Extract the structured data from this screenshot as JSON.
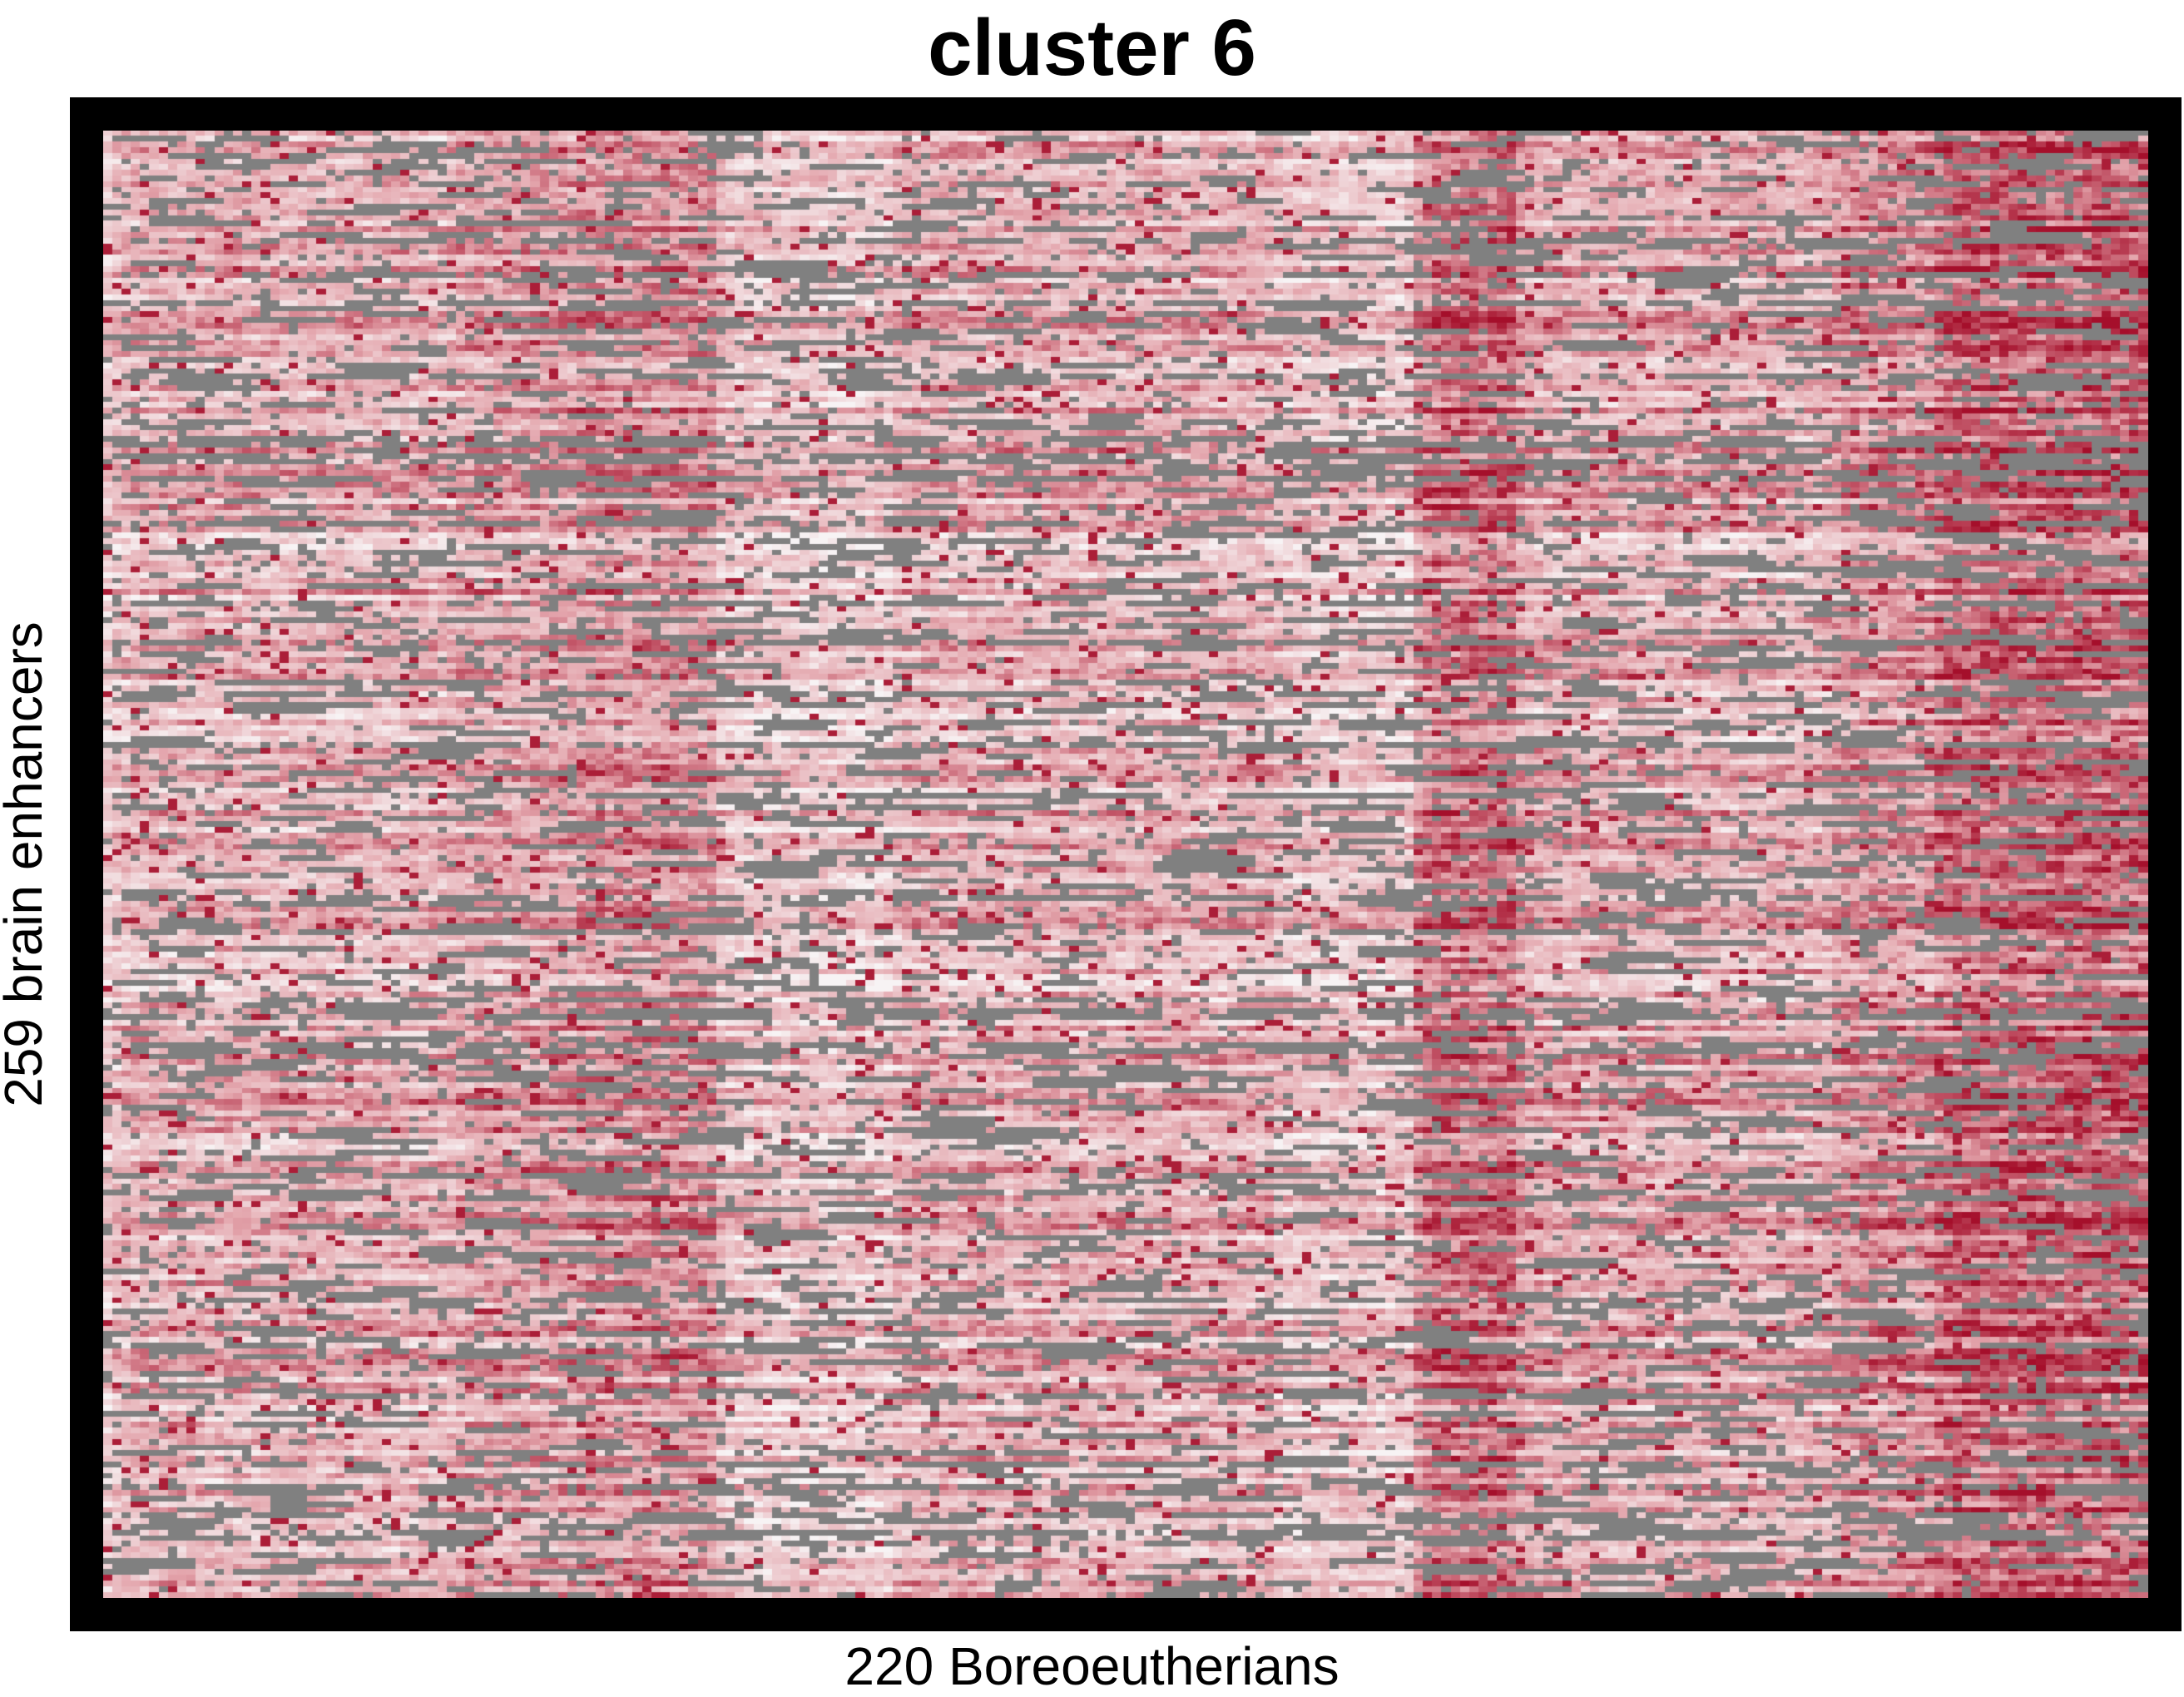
{
  "chart_data": {
    "type": "heatmap",
    "title": "cluster 6",
    "xlabel": "220 Boreoeutherians",
    "ylabel": "259 brain enhancers",
    "n_rows": 259,
    "n_cols": 220,
    "legend": "none",
    "grid": false,
    "colors": {
      "missing": "#808080",
      "low": "#f7f3f4",
      "mid": "#e4a7ae",
      "high": "#a50f2b",
      "frame": "#000000"
    },
    "column_blocks": [
      {
        "start": 0,
        "end": 37,
        "level": 0.4
      },
      {
        "start": 38,
        "end": 50,
        "level": 0.48
      },
      {
        "start": 51,
        "end": 65,
        "level": 0.55
      },
      {
        "start": 66,
        "end": 84,
        "level": 0.28
      },
      {
        "start": 85,
        "end": 125,
        "level": 0.4
      },
      {
        "start": 126,
        "end": 140,
        "level": 0.3
      },
      {
        "start": 141,
        "end": 151,
        "level": 0.68
      },
      {
        "start": 152,
        "end": 185,
        "level": 0.42
      },
      {
        "start": 186,
        "end": 196,
        "level": 0.55
      },
      {
        "start": 197,
        "end": 219,
        "level": 0.72
      }
    ],
    "missing_fraction": 0.16
  }
}
